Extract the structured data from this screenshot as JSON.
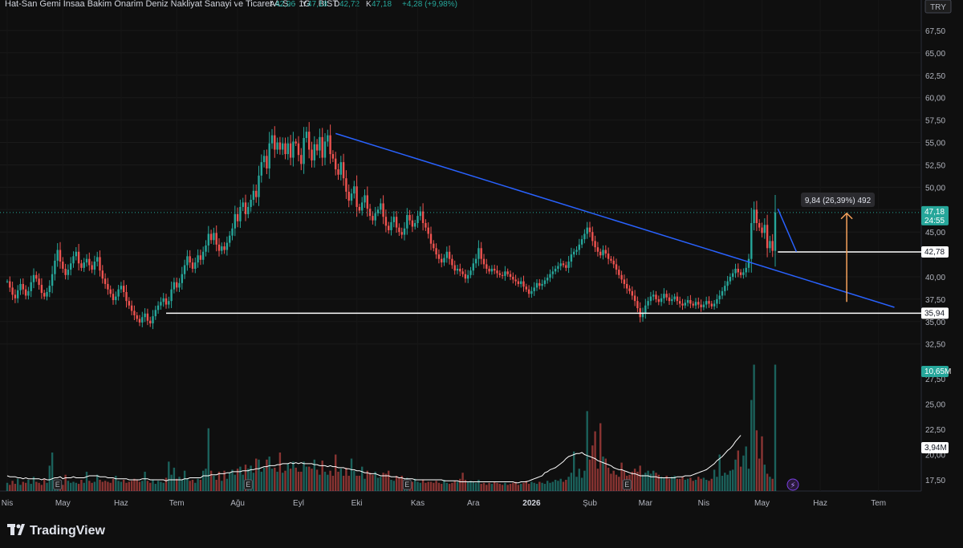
{
  "header": {
    "title": "Hat-San Gemi Insaa Bakim Onarim Deniz Nakliyat Sanayi ve Ticaret A.S. · 1G · BIST",
    "ohlc": [
      {
        "k": "A",
        "v": "42,96"
      },
      {
        "k": "Y",
        "v": "47,18"
      },
      {
        "k": "D",
        "v": "42,72"
      },
      {
        "k": "K",
        "v": "47,18"
      }
    ],
    "change": "+4,28 (+9,98%)",
    "currency": "TRY"
  },
  "colors": {
    "background": "#0f0f0f",
    "up": "#26a69a",
    "down": "#ef5350",
    "trendline": "#2962ff",
    "support": "#ffffff",
    "measure_arrow": "#f7a35c",
    "volume_ma": "#ffffff"
  },
  "brand": {
    "name": "TradingView"
  },
  "chart_data": {
    "type": "candlestick",
    "y_axis": {
      "min": 33,
      "max": 68.5,
      "ticks": [
        "67,50",
        "65,00",
        "62,50",
        "60,00",
        "57,50",
        "55,00",
        "52,50",
        "50,00",
        "47,50",
        "45,00",
        "42,50",
        "40,00",
        "37,50",
        "35,00",
        "32,50"
      ]
    },
    "volume_axis": {
      "ticks": [
        "27,50",
        "25,00",
        "22,50",
        "20,00",
        "17,50"
      ]
    },
    "x_axis": {
      "ticks": [
        {
          "label": "Nis",
          "idx": 0,
          "bold": false
        },
        {
          "label": "May",
          "idx": 21,
          "bold": false
        },
        {
          "label": "Haz",
          "idx": 43,
          "bold": false
        },
        {
          "label": "Tem",
          "idx": 64,
          "bold": false
        },
        {
          "label": "Ağu",
          "idx": 87,
          "bold": false
        },
        {
          "label": "Eyl",
          "idx": 110,
          "bold": false
        },
        {
          "label": "Eki",
          "idx": 132,
          "bold": false
        },
        {
          "label": "Kas",
          "idx": 155,
          "bold": false
        },
        {
          "label": "Ara",
          "idx": 176,
          "bold": false
        },
        {
          "label": "2026",
          "idx": 198,
          "bold": true
        },
        {
          "label": "Şub",
          "idx": 220,
          "bold": false
        },
        {
          "label": "Mar",
          "idx": 241,
          "bold": false
        },
        {
          "label": "Nis",
          "idx": 263,
          "bold": false
        },
        {
          "label": "May",
          "idx": 285,
          "bold": false
        },
        {
          "label": "Haz",
          "idx": 307,
          "bold": false
        },
        {
          "label": "Tem",
          "idx": 329,
          "bold": false
        }
      ]
    },
    "closes": [
      39.5,
      38.8,
      38.0,
      37.6,
      38.5,
      39.2,
      38.6,
      37.9,
      38.4,
      39.4,
      40.2,
      39.8,
      39.1,
      38.2,
      37.8,
      38.3,
      39.0,
      40.3,
      41.8,
      43.0,
      41.7,
      40.9,
      40.2,
      40.8,
      41.5,
      42.3,
      42.8,
      41.5,
      41.0,
      41.6,
      42.0,
      41.3,
      40.8,
      41.7,
      42.2,
      40.7,
      39.8,
      39.2,
      38.6,
      38.1,
      37.4,
      37.8,
      38.6,
      39.0,
      38.3,
      37.3,
      36.8,
      36.2,
      35.7,
      35.3,
      34.9,
      35.5,
      35.9,
      35.1,
      34.8,
      35.6,
      36.3,
      36.8,
      37.2,
      37.6,
      36.9,
      37.3,
      38.6,
      39.4,
      38.8,
      39.3,
      40.3,
      41.3,
      42.3,
      41.6,
      40.9,
      41.6,
      42.4,
      41.9,
      42.8,
      43.5,
      44.8,
      44.1,
      44.9,
      43.6,
      42.9,
      43.4,
      43.0,
      43.8,
      44.6,
      45.4,
      47.0,
      46.2,
      47.8,
      48.3,
      47.0,
      47.8,
      48.6,
      49.6,
      48.9,
      51.3,
      52.8,
      53.5,
      52.1,
      54.9,
      55.8,
      54.2,
      55.0,
      54.2,
      54.9,
      53.7,
      54.9,
      53.3,
      55.1,
      54.9,
      53.6,
      52.6,
      55.5,
      56.2,
      54.2,
      53.0,
      54.8,
      54.1,
      55.6,
      53.3,
      55.1,
      55.8,
      53.7,
      53.2,
      52.0,
      51.4,
      52.8,
      51.0,
      49.5,
      48.5,
      49.3,
      50.1,
      47.8,
      47.4,
      48.3,
      49.1,
      47.6,
      46.8,
      46.3,
      47.1,
      47.5,
      48.2,
      46.7,
      45.7,
      45.2,
      46.1,
      46.7,
      45.5,
      45.0,
      44.7,
      45.4,
      46.9,
      46.3,
      45.6,
      46.0,
      46.8,
      47.3,
      46.0,
      45.5,
      44.8,
      43.7,
      43.2,
      42.5,
      42.0,
      41.6,
      42.1,
      42.8,
      42.0,
      41.3,
      40.7,
      40.9,
      40.6,
      40.3,
      39.8,
      40.2,
      40.7,
      41.5,
      42.0,
      43.2,
      42.0,
      41.4,
      40.9,
      40.6,
      40.9,
      40.7,
      40.4,
      40.2,
      40.1,
      40.6,
      40.3,
      40.0,
      39.7,
      39.5,
      39.2,
      39.5,
      38.9,
      38.6,
      38.1,
      38.4,
      38.8,
      39.3,
      39.0,
      39.2,
      39.6,
      39.9,
      40.3,
      40.6,
      40.9,
      41.2,
      41.5,
      41.3,
      41.0,
      41.7,
      42.5,
      42.8,
      43.0,
      43.6,
      44.2,
      44.8,
      45.5,
      45.0,
      44.0,
      43.3,
      42.8,
      42.4,
      43.0,
      42.6,
      42.0,
      41.8,
      41.4,
      40.8,
      40.2,
      39.7,
      39.2,
      38.7,
      38.4,
      37.9,
      37.3,
      36.5,
      35.5,
      36.0,
      36.8,
      37.3,
      37.8,
      38.0,
      37.5,
      37.2,
      37.6,
      38.1,
      37.7,
      37.3,
      37.5,
      37.8,
      37.3,
      37.0,
      36.8,
      37.1,
      37.4,
      37.0,
      36.8,
      37.2,
      36.9,
      36.6,
      36.9,
      37.3,
      37.0,
      36.7,
      37.0,
      37.5,
      37.9,
      38.4,
      39.0,
      39.5,
      40.0,
      40.4,
      40.9,
      40.5,
      40.2,
      40.5,
      41.0,
      42.0,
      46.0,
      47.5,
      46.0,
      45.5,
      44.9,
      45.8,
      43.2,
      44.0,
      42.9,
      47.18
    ],
    "volume_values": [
      17.2,
      17.0,
      17.4,
      17.1,
      17.6,
      17.0,
      17.3,
      17.2,
      17.5,
      17.1,
      17.8,
      17.3,
      17.2,
      17.0,
      17.6,
      17.2,
      18.9,
      20.2,
      17.5,
      17.3,
      17.2,
      17.0,
      18.0,
      17.4,
      17.2,
      17.3,
      17.2,
      17.1,
      17.5,
      17.2,
      18.3,
      17.4,
      17.2,
      17.3,
      18.0,
      17.5,
      17.3,
      17.4,
      17.3,
      17.2,
      17.6,
      17.9,
      17.4,
      17.3,
      17.5,
      17.2,
      17.3,
      17.4,
      17.6,
      17.5,
      17.3,
      17.4,
      18.3,
      17.4,
      17.2,
      17.5,
      17.1,
      17.4,
      17.3,
      17.2,
      17.7,
      19.3,
      18.0,
      18.7,
      17.6,
      17.8,
      17.5,
      18.4,
      17.6,
      17.4,
      17.5,
      17.2,
      17.6,
      17.5,
      18.4,
      18.6,
      22.6,
      18.4,
      17.9,
      17.5,
      18.3,
      17.4,
      18.4,
      17.6,
      18.2,
      18.5,
      18.0,
      18.6,
      18.8,
      18.0,
      19.0,
      18.6,
      18.9,
      18.2,
      19.6,
      19.5,
      18.3,
      18.7,
      19.5,
      19.8,
      18.6,
      18.7,
      18.3,
      20.2,
      18.2,
      18.4,
      19.1,
      18.6,
      19.3,
      18.7,
      18.3,
      18.3,
      19.3,
      18.8,
      18.8,
      18.6,
      19.5,
      18.5,
      18.0,
      19.4,
      18.3,
      18.0,
      18.4,
      17.9,
      20.0,
      18.3,
      18.6,
      17.9,
      18.7,
      17.9,
      19.6,
      18.4,
      17.9,
      17.9,
      18.8,
      17.6,
      18.4,
      18.2,
      18.0,
      18.3,
      17.7,
      17.8,
      18.2,
      18.1,
      18.4,
      17.5,
      17.4,
      17.9,
      17.7,
      17.9,
      17.5,
      17.7,
      17.4,
      17.3,
      17.6,
      17.3,
      17.2,
      17.5,
      17.2,
      17.3,
      17.3,
      17.2,
      17.4,
      17.2,
      17.1,
      17.5,
      17.2,
      17.1,
      17.2,
      17.4,
      17.3,
      17.6,
      18.2,
      17.5,
      17.3,
      17.4,
      17.3,
      17.2,
      17.5,
      17.1,
      17.2,
      17.0,
      17.2,
      17.1,
      17.3,
      17.2,
      17.1,
      17.0,
      17.2,
      17.0,
      17.1,
      17.2,
      17.3,
      17.0,
      17.1,
      17.2,
      17.4,
      17.1,
      17.3,
      17.2,
      17.1,
      17.3,
      17.2,
      17.1,
      17.4,
      17.2,
      17.3,
      17.5,
      17.4,
      17.6,
      17.3,
      17.5,
      17.8,
      18.2,
      20.3,
      17.8,
      18.6,
      17.7,
      18.4,
      24.3,
      19.5,
      20.9,
      22.3,
      18.6,
      23.1,
      19.8,
      19.6,
      18.7,
      18.1,
      18.4,
      18.0,
      17.8,
      19.2,
      18.4,
      17.9,
      18.0,
      18.3,
      18.6,
      18.3,
      18.9,
      18.0,
      18.2,
      18.4,
      18.1,
      18.4,
      18.2,
      18.0,
      17.8,
      17.7,
      17.9,
      17.6,
      17.8,
      17.9,
      17.6,
      17.6,
      17.8,
      17.5,
      17.6,
      17.7,
      17.4,
      17.5,
      17.8,
      17.6,
      17.7,
      17.5,
      17.4,
      17.6,
      18.5,
      17.8,
      20.0,
      17.9,
      18.2,
      18.0,
      18.4,
      18.5,
      19.5,
      20.4,
      18.8,
      19.9,
      20.8,
      18.6,
      25.4,
      28.9,
      22.4,
      19.6,
      21.8,
      19.0,
      18.1,
      17.8,
      17.6,
      28.9
    ],
    "volume_ma": [
      17.9,
      17.8,
      17.8,
      17.8,
      17.7,
      17.7,
      17.6,
      17.7,
      17.6,
      17.6,
      17.6,
      17.6,
      17.6,
      17.5,
      17.6,
      17.5,
      17.5,
      17.6,
      17.7,
      17.7,
      17.8,
      17.6,
      17.7,
      17.7,
      17.7,
      17.8,
      17.7,
      17.7,
      17.7,
      17.7,
      17.8,
      17.9,
      17.9,
      17.9,
      17.9,
      17.8,
      17.8,
      17.8,
      17.7,
      17.7,
      17.7,
      17.6,
      17.6,
      17.6,
      17.6,
      17.6,
      17.5,
      17.5,
      17.5,
      17.5,
      17.5,
      17.6,
      17.6,
      17.6,
      17.5,
      17.5,
      17.5,
      17.5,
      17.5,
      17.5,
      17.4,
      17.5,
      17.5,
      17.5,
      17.5,
      17.5,
      17.5,
      17.6,
      17.6,
      17.7,
      17.7,
      17.7,
      17.7,
      17.7,
      17.9,
      17.9,
      17.9,
      18.0,
      18.0,
      18.0,
      18.1,
      18.1,
      18.1,
      18.2,
      18.2,
      18.3,
      18.3,
      18.3,
      18.3,
      18.4,
      18.4,
      18.4,
      18.5,
      18.5,
      18.6,
      18.6,
      18.7,
      18.8,
      18.8,
      18.9,
      18.9,
      18.9,
      19.0,
      19.0,
      19.1,
      19.1,
      19.1,
      19.2,
      19.1,
      19.2,
      19.1,
      19.2,
      19.1,
      19.1,
      19.1,
      19.1,
      19.0,
      19.0,
      18.9,
      18.9,
      18.9,
      18.8,
      18.9,
      18.8,
      18.8,
      18.7,
      18.7,
      18.7,
      18.6,
      18.6,
      18.5,
      18.5,
      18.4,
      18.4,
      18.3,
      18.2,
      18.2,
      18.1,
      18.1,
      18.1,
      18.0,
      17.9,
      17.9,
      17.9,
      17.9,
      17.8,
      17.8,
      17.8,
      17.7,
      17.7,
      17.6,
      17.6,
      17.6,
      17.6,
      17.5,
      17.5,
      17.5,
      17.5,
      17.5,
      17.5,
      17.5,
      17.5,
      17.5,
      17.5,
      17.5,
      17.4,
      17.4,
      17.4,
      17.4,
      17.4,
      17.4,
      17.3,
      17.3,
      17.3,
      17.3,
      17.3,
      17.3,
      17.3,
      17.3,
      17.3,
      17.3,
      17.3,
      17.3,
      17.3,
      17.3,
      17.3,
      17.3,
      17.3,
      17.3,
      17.3,
      17.3,
      17.3,
      17.2,
      17.2,
      17.3,
      17.3,
      17.3,
      17.4,
      17.5,
      17.6,
      17.7,
      17.8,
      17.9,
      18.2,
      18.3,
      18.5,
      18.6,
      18.7,
      18.9,
      19.1,
      19.3,
      19.6,
      19.8,
      19.9,
      20.0,
      20.1,
      20.1,
      20.2,
      20.0,
      19.9,
      19.8,
      19.7,
      19.6,
      19.4,
      19.3,
      19.2,
      19.1,
      19.0,
      18.9,
      18.7,
      18.6,
      18.5,
      18.5,
      18.4,
      18.3,
      18.2,
      18.1,
      18.1,
      18.0,
      17.9,
      17.9,
      17.9,
      17.9,
      17.8,
      17.8,
      17.8,
      17.7,
      17.7,
      17.7,
      17.7,
      17.7,
      17.7,
      17.7,
      17.8,
      17.8,
      17.8,
      17.9,
      17.9,
      17.9,
      18.0,
      18.1,
      18.2,
      18.3,
      18.4,
      18.5,
      18.7,
      18.9,
      19.1,
      19.4,
      19.6,
      19.8,
      20.1,
      20.4,
      20.6,
      20.9,
      21.3,
      21.6,
      21.9
    ],
    "trendlines": [
      {
        "p1": {
          "idx": 124,
          "price": 56.0
        },
        "p2": {
          "idx": 335,
          "price": 36.6
        }
      },
      {
        "p1": {
          "idx": 291,
          "price": 47.6
        },
        "p2": {
          "idx": 298,
          "price": 42.8
        }
      }
    ],
    "horizontal_levels": [
      {
        "from_idx": 60,
        "price": 35.94,
        "label": "35,94"
      },
      {
        "from_idx": 291,
        "price": 42.78,
        "label": "42,78"
      }
    ],
    "last_price": {
      "price": 47.18,
      "label": "47,18",
      "countdown": "24:55"
    },
    "volume_labels": {
      "last": "10,65M",
      "ma": "3,94M"
    },
    "measurement": {
      "label": "9,84 (26,39%) 492",
      "from_price": 37.2,
      "to_price": 47.1,
      "idx": 317
    },
    "earnings_markers": {
      "label": "E",
      "idx": [
        19,
        91,
        151,
        234
      ]
    },
    "title": "",
    "xlabel": "",
    "ylabel": ""
  }
}
